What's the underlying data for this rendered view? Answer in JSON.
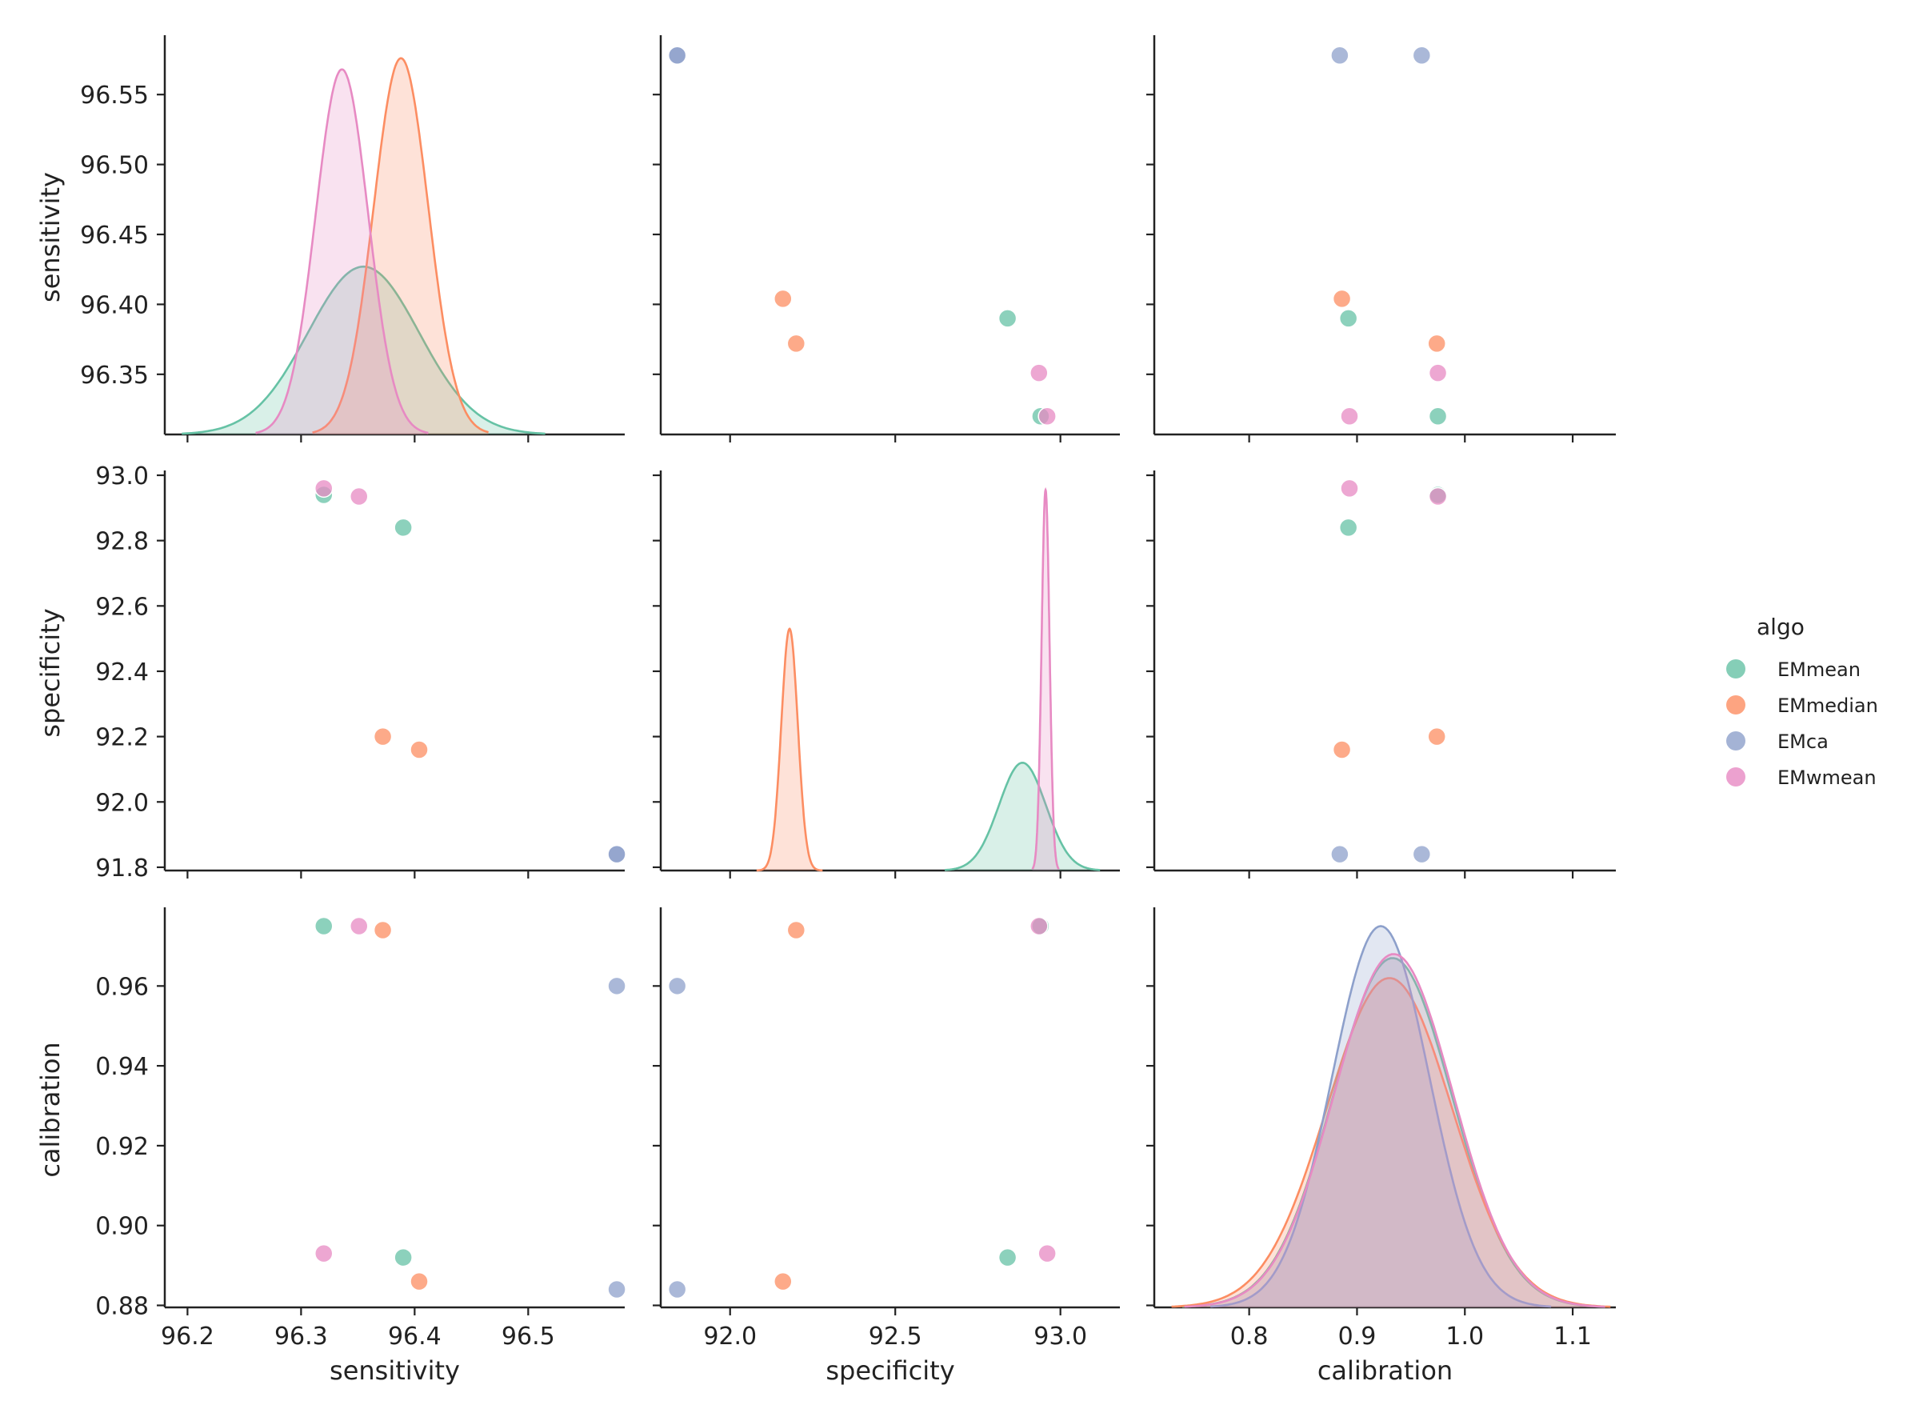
{
  "chart_data": {
    "type": "pairplot",
    "variables": [
      "sensitivity",
      "specificity",
      "calibration"
    ],
    "axis_labels": {
      "sensitivity": "sensitivity",
      "specificity": "specificity",
      "calibration": "calibration"
    },
    "ticks": {
      "sensitivity": {
        "x": {
          "values": [
            96.2,
            96.3,
            96.4,
            96.5
          ],
          "labels": [
            "96.2",
            "96.3",
            "96.4",
            "96.5"
          ],
          "range": [
            96.18,
            96.585
          ]
        },
        "y": {
          "values": [
            96.35,
            96.4,
            96.45,
            96.5,
            96.55
          ],
          "labels": [
            "96.35",
            "96.40",
            "96.45",
            "96.50",
            "96.55"
          ],
          "range": [
            96.307,
            96.589
          ]
        }
      },
      "specificity": {
        "x": {
          "values": [
            92.0,
            92.5,
            93.0
          ],
          "labels": [
            "92.0",
            "92.5",
            "93.0"
          ],
          "range": [
            91.79,
            93.18
          ]
        },
        "y": {
          "values": [
            91.8,
            92.0,
            92.2,
            92.4,
            92.6,
            92.8,
            93.0
          ],
          "labels": [
            "91.8",
            "92.0",
            "92.2",
            "92.4",
            "92.6",
            "92.8",
            "93.0"
          ],
          "range": [
            91.79,
            93.0
          ]
        }
      },
      "calibration": {
        "x": {
          "values": [
            0.8,
            0.9,
            1.0,
            1.1
          ],
          "labels": [
            "0.8",
            "0.9",
            "1.0",
            "1.1"
          ],
          "range": [
            0.712,
            1.14
          ]
        },
        "y": {
          "values": [
            0.88,
            0.9,
            0.92,
            0.94,
            0.96
          ],
          "labels": [
            "0.88",
            "0.90",
            "0.92",
            "0.94",
            "0.96"
          ],
          "range": [
            0.8795,
            0.9785
          ]
        }
      }
    },
    "series": [
      {
        "name": "EMmean",
        "color": "#66c2a5",
        "points": [
          {
            "sensitivity": 96.39,
            "specificity": 92.84,
            "calibration": 0.892
          },
          {
            "sensitivity": 96.32,
            "specificity": 92.94,
            "calibration": 0.975
          }
        ],
        "kde": {
          "sensitivity": {
            "mean": 96.355,
            "sd": 0.049,
            "peak": 96.427,
            "range": [
              96.195,
              96.515
            ]
          },
          "specificity": {
            "mean": 92.885,
            "sd": 0.071,
            "peak": 92.12,
            "range": [
              92.65,
              93.12
            ]
          },
          "calibration": {
            "mean": 0.933,
            "sd": 0.055,
            "peak": 0.967,
            "range": [
              0.738,
              1.13
            ]
          }
        }
      },
      {
        "name": "EMmedian",
        "color": "#fc8d62",
        "points": [
          {
            "sensitivity": 96.404,
            "specificity": 92.16,
            "calibration": 0.886
          },
          {
            "sensitivity": 96.372,
            "specificity": 92.2,
            "calibration": 0.974
          }
        ],
        "kde": {
          "sensitivity": {
            "mean": 96.388,
            "sd": 0.024,
            "peak": 96.576,
            "range": [
              96.31,
              96.465
            ]
          },
          "specificity": {
            "mean": 92.18,
            "sd": 0.025,
            "peak": 92.53,
            "range": [
              92.08,
              92.28
            ]
          },
          "calibration": {
            "mean": 0.93,
            "sd": 0.058,
            "peak": 0.962,
            "range": [
              0.728,
              1.135
            ]
          }
        }
      },
      {
        "name": "EMca",
        "color": "#8da0cb",
        "points": [
          {
            "sensitivity": 96.578,
            "specificity": 91.84,
            "calibration": 0.884
          },
          {
            "sensitivity": 96.578,
            "specificity": 91.84,
            "calibration": 0.96
          }
        ],
        "kde": {
          "calibration": {
            "mean": 0.922,
            "sd": 0.045,
            "peak": 0.975,
            "range": [
              0.764,
              1.08
            ]
          }
        }
      },
      {
        "name": "EMwmean",
        "color": "#e78ac3",
        "points": [
          {
            "sensitivity": 96.32,
            "specificity": 92.96,
            "calibration": 0.893
          },
          {
            "sensitivity": 96.351,
            "specificity": 92.935,
            "calibration": 0.975
          }
        ],
        "kde": {
          "sensitivity": {
            "mean": 96.336,
            "sd": 0.023,
            "peak": 96.568,
            "range": [
              96.26,
              96.412
            ]
          },
          "specificity": {
            "mean": 92.955,
            "sd": 0.012,
            "peak": 92.955,
            "range": [
              92.915,
              92.995
            ]
          },
          "calibration": {
            "mean": 0.934,
            "sd": 0.055,
            "peak": 0.968,
            "range": [
              0.74,
              1.13
            ]
          }
        }
      }
    ],
    "legend": {
      "title": "algo",
      "entries": [
        "EMmean",
        "EMmedian",
        "EMca",
        "EMwmean"
      ],
      "position": "right"
    }
  }
}
